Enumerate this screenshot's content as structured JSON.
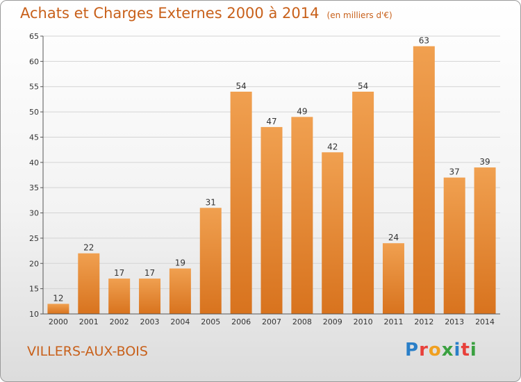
{
  "chart_data": {
    "type": "bar",
    "title": "Achats et Charges Externes 2000 à 2014",
    "subtitle": "(en milliers d'€)",
    "categories": [
      "2000",
      "2001",
      "2002",
      "2003",
      "2004",
      "2005",
      "2006",
      "2007",
      "2008",
      "2009",
      "2010",
      "2011",
      "2012",
      "2013",
      "2014"
    ],
    "values": [
      12,
      22,
      17,
      17,
      19,
      31,
      54,
      47,
      49,
      42,
      54,
      24,
      63,
      37,
      39
    ],
    "ylim": [
      10,
      65
    ],
    "yticks": [
      10,
      15,
      20,
      25,
      30,
      35,
      40,
      45,
      50,
      55,
      60,
      65
    ],
    "grid": true,
    "xlabel": "",
    "ylabel": "",
    "bar_color": "#f0a050",
    "bar_color_dark": "#d8731e"
  },
  "commune": "VILLERS-AUX-BOIS",
  "logo": {
    "letters": [
      "P",
      "r",
      "o",
      "x",
      "i",
      "t",
      "i"
    ],
    "colors": [
      "#2a7fc8",
      "#e8403a",
      "#f0a020",
      "#3aa040",
      "#2a7fc8",
      "#e8403a",
      "#3aa040"
    ]
  }
}
